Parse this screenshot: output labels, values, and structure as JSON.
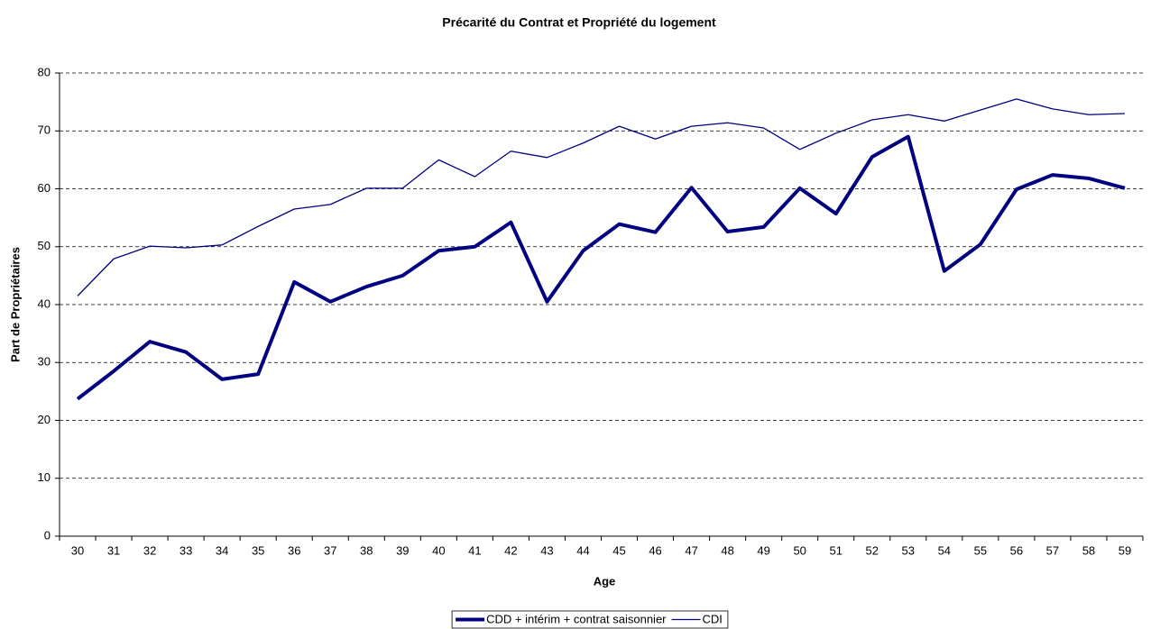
{
  "chart_data": {
    "type": "line",
    "title": "Précarité du Contrat et Propriété du logement",
    "x_label": "Age",
    "y_label": "Part de Propriétaires",
    "categories": [
      "30",
      "31",
      "32",
      "33",
      "34",
      "35",
      "36",
      "37",
      "38",
      "39",
      "40",
      "41",
      "42",
      "43",
      "44",
      "45",
      "46",
      "47",
      "48",
      "49",
      "50",
      "51",
      "52",
      "53",
      "54",
      "55",
      "56",
      "57",
      "58",
      "59"
    ],
    "series": [
      {
        "name": "CDD + intérim + contrat saisonnier",
        "color": "#000080",
        "values": [
          23.7,
          28.5,
          33.6,
          31.8,
          27.1,
          28.0,
          43.9,
          40.5,
          43.1,
          45.0,
          49.3,
          50.0,
          54.2,
          40.5,
          49.3,
          53.9,
          52.5,
          60.2,
          52.6,
          53.4,
          60.1,
          55.7,
          65.5,
          69.0,
          45.8,
          50.4,
          59.9,
          62.4,
          61.8,
          60.1
        ]
      },
      {
        "name": "CDI",
        "color": "#000080",
        "values": [
          41.5,
          47.9,
          50.1,
          49.8,
          50.3,
          53.5,
          56.5,
          57.3,
          60.1,
          60.1,
          65.0,
          62.1,
          66.5,
          65.4,
          67.9,
          70.8,
          68.6,
          70.8,
          71.4,
          70.5,
          66.8,
          69.6,
          71.9,
          72.8,
          71.7,
          73.6,
          75.5,
          73.8,
          72.8,
          73.0
        ]
      }
    ],
    "ylim": [
      0,
      80
    ],
    "yticks": [
      0,
      10,
      20,
      30,
      40,
      50,
      60,
      70,
      80
    ],
    "grid": true,
    "legend": "bottom"
  }
}
